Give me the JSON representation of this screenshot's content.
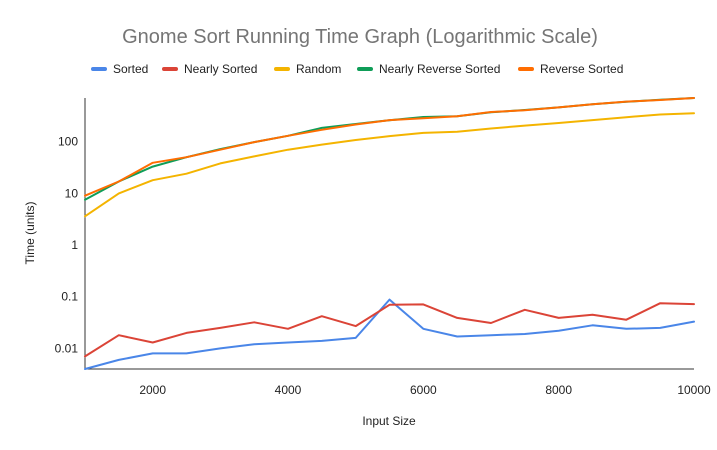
{
  "chart_data": {
    "type": "line",
    "title": "Gnome Sort Running Time Graph (Logarithmic Scale)",
    "xlabel": "Input Size",
    "ylabel": "Time (units)",
    "y_scale": "log",
    "xlim": [
      1000,
      10000
    ],
    "ylim": [
      0.004,
      700
    ],
    "x_ticks": [
      2000,
      4000,
      6000,
      8000,
      10000
    ],
    "x_tick_labels": [
      "2000",
      "4000",
      "6000",
      "8000",
      "10000"
    ],
    "y_ticks": [
      0.01,
      0.1,
      1,
      10,
      100
    ],
    "y_tick_labels": [
      "0.01",
      "0.1",
      "1",
      "10",
      "100"
    ],
    "grid": false,
    "legend_position": "top",
    "x": [
      1000,
      1500,
      2000,
      2500,
      3000,
      3500,
      4000,
      4500,
      5000,
      5500,
      6000,
      6500,
      7000,
      7500,
      8000,
      8500,
      9000,
      9500,
      10000
    ],
    "series": [
      {
        "name": "Sorted",
        "color": "#4a86e8",
        "values": [
          0.004,
          0.006,
          0.008,
          0.008,
          0.01,
          0.012,
          0.013,
          0.014,
          0.016,
          0.088,
          0.024,
          0.017,
          0.018,
          0.019,
          0.022,
          0.028,
          0.024,
          0.025,
          0.033
        ]
      },
      {
        "name": "Nearly Sorted",
        "color": "#db4437",
        "values": [
          0.007,
          0.018,
          0.013,
          0.02,
          0.025,
          0.032,
          0.024,
          0.042,
          0.027,
          0.07,
          0.071,
          0.039,
          0.031,
          0.056,
          0.039,
          0.045,
          0.036,
          0.075,
          0.072
        ]
      },
      {
        "name": "Random",
        "color": "#f4b400",
        "values": [
          3.6,
          10,
          18,
          24,
          38,
          52,
          70,
          88,
          108,
          128,
          148,
          155,
          180,
          205,
          230,
          262,
          298,
          335,
          355
        ]
      },
      {
        "name": "Nearly Reverse Sorted",
        "color": "#0f9d58",
        "values": [
          7.5,
          17,
          33,
          50,
          72,
          98,
          130,
          185,
          220,
          260,
          300,
          310,
          370,
          410,
          460,
          530,
          590,
          650,
          700
        ]
      },
      {
        "name": "Reverse Sorted",
        "color": "#ff6d01",
        "values": [
          9,
          17,
          39,
          50,
          70,
          98,
          130,
          170,
          215,
          262,
          285,
          310,
          375,
          405,
          460,
          530,
          595,
          640,
          700
        ]
      }
    ]
  }
}
